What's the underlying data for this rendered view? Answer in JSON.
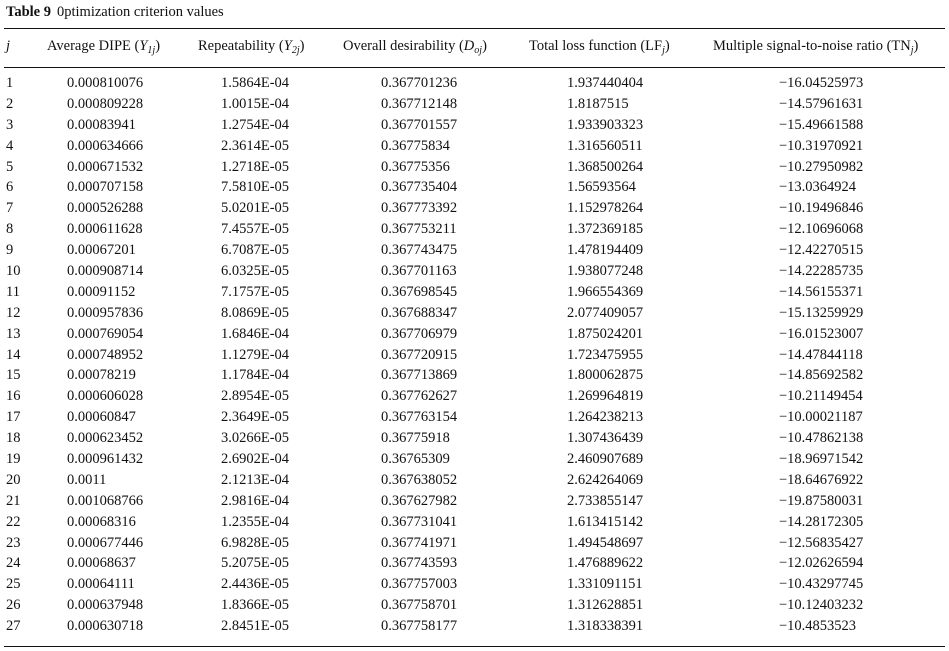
{
  "table": {
    "label": "Table 9",
    "title": "0ptimization criterion values",
    "headers": {
      "j": "j",
      "average_dipe": "Average DIPE (",
      "average_dipe_sym": "Y",
      "average_dipe_sub": "1j",
      "repeatability": "Repeatability (",
      "repeatability_sym": "Y",
      "repeatability_sub": "2j",
      "desirability": "Overall desirability (",
      "desirability_sym": "D",
      "desirability_sub": "oj",
      "loss": "Total loss function (LF",
      "loss_sub": "j",
      "snr": "Multiple signal-to-noise ratio (TN",
      "snr_sub": "j",
      "close": ")"
    },
    "rows": [
      [
        "1",
        "0.000810076",
        "1.5864E-04",
        "0.367701236",
        "1.937440404",
        "−16.04525973"
      ],
      [
        "2",
        "0.000809228",
        "1.0015E-04",
        "0.367712148",
        "1.8187515",
        "−14.57961631"
      ],
      [
        "3",
        "0.00083941",
        "1.2754E-04",
        "0.367701557",
        "1.933903323",
        "−15.49661588"
      ],
      [
        "4",
        "0.000634666",
        "2.3614E-05",
        "0.36775834",
        "1.316560511",
        "−10.31970921"
      ],
      [
        "5",
        "0.000671532",
        "1.2718E-05",
        "0.36775356",
        "1.368500264",
        "−10.27950982"
      ],
      [
        "6",
        "0.000707158",
        "7.5810E-05",
        "0.367735404",
        "1.56593564",
        "−13.0364924"
      ],
      [
        "7",
        "0.000526288",
        "5.0201E-05",
        "0.367773392",
        "1.152978264",
        "−10.19496846"
      ],
      [
        "8",
        "0.000611628",
        "7.4557E-05",
        "0.367753211",
        "1.372369185",
        "−12.10696068"
      ],
      [
        "9",
        "0.00067201",
        "6.7087E-05",
        "0.367743475",
        "1.478194409",
        "−12.42270515"
      ],
      [
        "10",
        "0.000908714",
        "6.0325E-05",
        "0.367701163",
        "1.938077248",
        "−14.22285735"
      ],
      [
        "11",
        "0.00091152",
        "7.1757E-05",
        "0.367698545",
        "1.966554369",
        "−14.56155371"
      ],
      [
        "12",
        "0.000957836",
        "8.0869E-05",
        "0.367688347",
        "2.077409057",
        "−15.13259929"
      ],
      [
        "13",
        "0.000769054",
        "1.6846E-04",
        "0.367706979",
        "1.875024201",
        "−16.01523007"
      ],
      [
        "14",
        "0.000748952",
        "1.1279E-04",
        "0.367720915",
        "1.723475955",
        "−14.47844118"
      ],
      [
        "15",
        "0.00078219",
        "1.1784E-04",
        "0.367713869",
        "1.800062875",
        "−14.85692582"
      ],
      [
        "16",
        "0.000606028",
        "2.8954E-05",
        "0.367762627",
        "1.269964819",
        "−10.21149454"
      ],
      [
        "17",
        "0.00060847",
        "2.3649E-05",
        "0.367763154",
        "1.264238213",
        "−10.00021187"
      ],
      [
        "18",
        "0.000623452",
        "3.0266E-05",
        "0.36775918",
        "1.307436439",
        "−10.47862138"
      ],
      [
        "19",
        "0.000961432",
        "2.6902E-04",
        "0.36765309",
        "2.460907689",
        "−18.96971542"
      ],
      [
        "20",
        "0.0011",
        "2.1213E-04",
        "0.367638052",
        "2.624264069",
        "−18.64676922"
      ],
      [
        "21",
        "0.001068766",
        "2.9816E-04",
        "0.367627982",
        "2.733855147",
        "−19.87580031"
      ],
      [
        "22",
        "0.00068316",
        "1.2355E-04",
        "0.367731041",
        "1.613415142",
        "−14.28172305"
      ],
      [
        "23",
        "0.000677446",
        "6.9828E-05",
        "0.367741971",
        "1.494548697",
        "−12.56835427"
      ],
      [
        "24",
        "0.00068637",
        "5.2075E-05",
        "0.367743593",
        "1.476889622",
        "−12.02626594"
      ],
      [
        "25",
        "0.00064111",
        "2.4436E-05",
        "0.367757003",
        "1.331091151",
        "−10.43297745"
      ],
      [
        "26",
        "0.000637948",
        "1.8366E-05",
        "0.367758701",
        "1.312628851",
        "−10.12403232"
      ],
      [
        "27",
        "0.000630718",
        "2.8451E-05",
        "0.367758177",
        "1.318338391",
        "−10.4853523"
      ]
    ]
  }
}
